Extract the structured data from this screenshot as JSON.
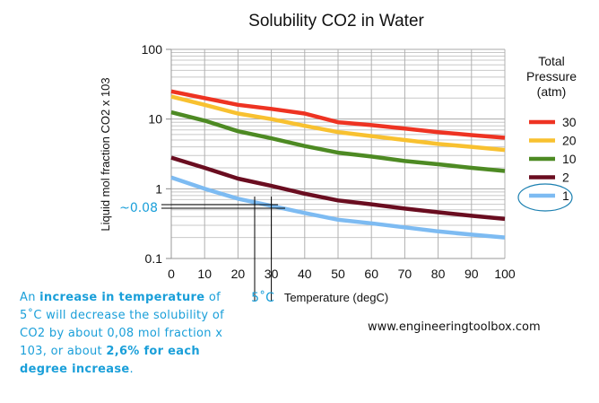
{
  "chart_data": {
    "type": "line",
    "title": "Solubility CO2 in Water",
    "xlabel": "Temperature (degC)",
    "ylabel": "Liquid mol fraction CO2 x 103",
    "xlim": [
      0,
      100
    ],
    "ylim": [
      0.1,
      100
    ],
    "yscale": "log",
    "grid": true,
    "x_ticks": [
      "0",
      "10",
      "20",
      "30",
      "40",
      "50",
      "60",
      "70",
      "80",
      "90",
      "100"
    ],
    "y_ticks": [
      "0.1",
      "1",
      "10",
      "100"
    ],
    "legend_title": "Total Pressure (atm)",
    "legend_position": "right",
    "x": [
      0,
      10,
      20,
      30,
      40,
      50,
      60,
      70,
      80,
      90,
      100
    ],
    "series": [
      {
        "name": "30",
        "color": "#ee3322",
        "values": [
          25,
          20,
          16,
          14,
          12,
          9,
          8.2,
          7.3,
          6.5,
          5.9,
          5.4
        ]
      },
      {
        "name": "20",
        "color": "#f8c130",
        "values": [
          21,
          16,
          12,
          10,
          8,
          6.5,
          5.7,
          5,
          4.4,
          4,
          3.6
        ]
      },
      {
        "name": "10",
        "color": "#4d8a23",
        "values": [
          12.5,
          9.5,
          6.7,
          5.3,
          4.1,
          3.3,
          2.9,
          2.5,
          2.25,
          2,
          1.8
        ]
      },
      {
        "name": "2",
        "color": "#6a0d20",
        "values": [
          2.8,
          2,
          1.4,
          1.1,
          0.85,
          0.68,
          0.6,
          0.52,
          0.46,
          0.41,
          0.37
        ]
      },
      {
        "name": "1",
        "color": "#7dbbf2",
        "values": [
          1.45,
          1,
          0.72,
          0.57,
          0.45,
          0.36,
          0.32,
          0.28,
          0.245,
          0.22,
          0.2
        ]
      }
    ],
    "annotations": {
      "delta_y_label": "~0.08",
      "delta_x_label": "5˚C",
      "marked_x": [
        25,
        30
      ],
      "highlighted_series": "1"
    }
  },
  "note": {
    "p1": "An ",
    "b1": "increase in temperature",
    "p2": " of 5˚C will decrease the solubility of CO2 by about 0,08 mol fraction x 103, or about ",
    "b2": "2,6% for each degree increase",
    "p3": "."
  },
  "watermark": "www.engineeringtoolbox.com"
}
